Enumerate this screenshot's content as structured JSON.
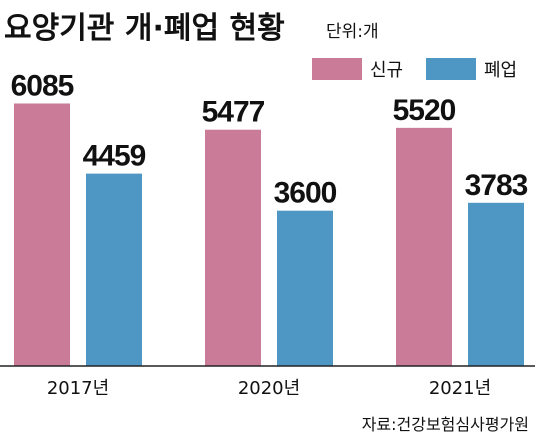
{
  "chart_data": {
    "type": "bar",
    "title": "요양기관 개·폐업 현황",
    "unit": "단위:개",
    "categories": [
      "2017년",
      "2020년",
      "2021년"
    ],
    "series": [
      {
        "name": "신규",
        "color": "#c97b98",
        "values": [
          6085,
          5477,
          5520
        ]
      },
      {
        "name": "폐업",
        "color": "#4e97c4",
        "values": [
          4459,
          3600,
          3783
        ]
      }
    ],
    "ylim": [
      0,
      7000
    ],
    "grid": false,
    "legend_position": "top-right",
    "source": "자료:건강보험심사평가원"
  }
}
